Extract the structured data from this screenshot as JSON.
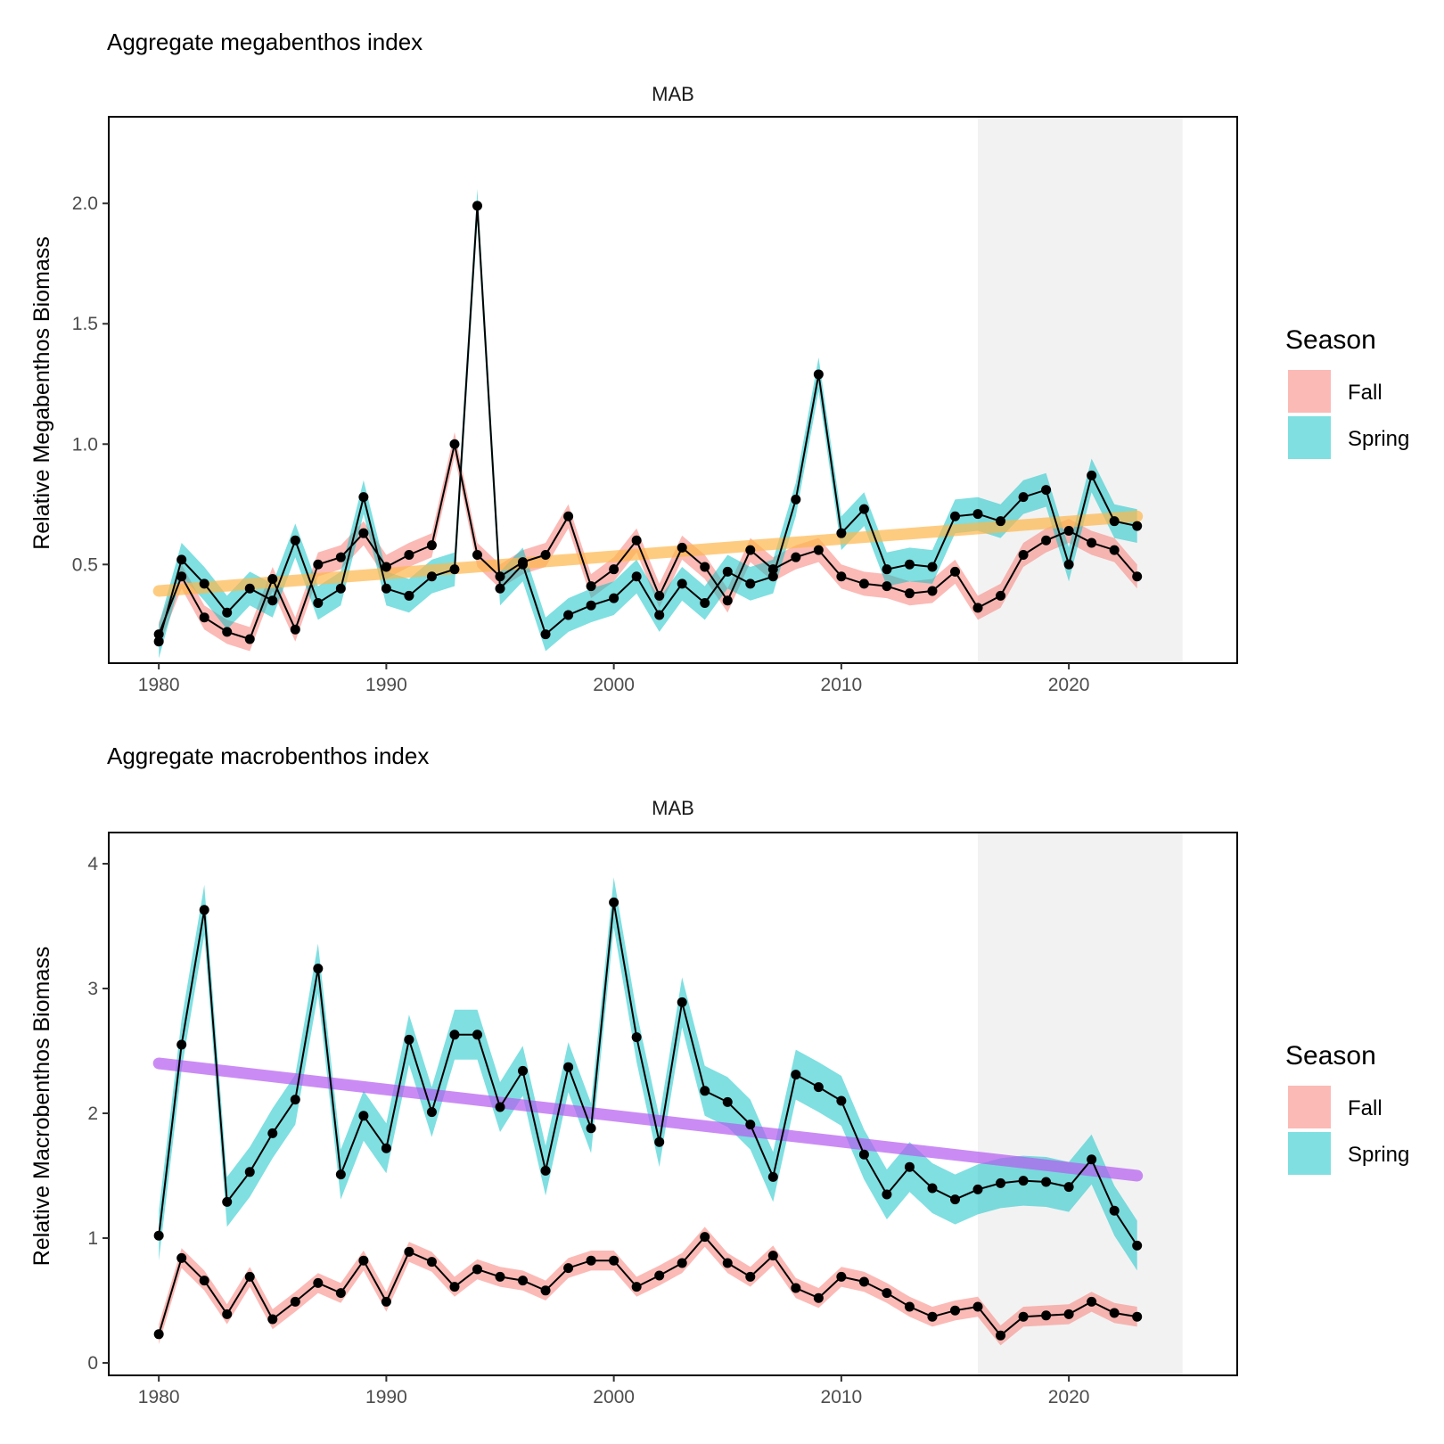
{
  "legend_title": "Season",
  "legend_items": [
    {
      "label": "Fall",
      "color": "#F8766D"
    },
    {
      "label": "Spring",
      "color": "#00BFC4"
    }
  ],
  "colors": {
    "fall_ribbon": "#F8766D",
    "spring_ribbon": "#00BFC4",
    "line": "#000000",
    "shade": "#F2F2F2",
    "trend_top": "#FDB64B",
    "trend_bottom": "#B45BF0"
  },
  "chart_data": [
    {
      "type": "line",
      "title": "Aggregate megabenthos index",
      "facet": "MAB",
      "ylabel": "Relative Megabenthos Biomass",
      "xlim": [
        1977.8,
        2027.4
      ],
      "ylim": [
        0.09,
        2.36
      ],
      "xticks": [
        1980,
        1990,
        2000,
        2010,
        2020
      ],
      "yticks": [
        0.5,
        1.0,
        1.5,
        2.0
      ],
      "ytick_labels": [
        "0.5",
        "1.0",
        "1.5",
        "2.0"
      ],
      "shade_range": [
        2016,
        2025
      ],
      "trend": {
        "x": [
          1980,
          2023
        ],
        "y": [
          0.39,
          0.7
        ]
      },
      "x": [
        1980,
        1981,
        1982,
        1983,
        1984,
        1985,
        1986,
        1987,
        1988,
        1989,
        1990,
        1991,
        1992,
        1993,
        1994,
        1995,
        1996,
        1997,
        1998,
        1999,
        2000,
        2001,
        2002,
        2003,
        2004,
        2005,
        2006,
        2007,
        2008,
        2009,
        2010,
        2011,
        2012,
        2013,
        2014,
        2015,
        2016,
        2017,
        2018,
        2019,
        2020,
        2021,
        2022,
        2023
      ],
      "series": [
        {
          "name": "Fall",
          "values": [
            0.21,
            0.45,
            0.28,
            0.22,
            0.19,
            0.44,
            0.23,
            0.5,
            0.53,
            0.63,
            0.49,
            0.54,
            0.58,
            1.0,
            0.54,
            0.45,
            0.51,
            0.54,
            0.7,
            0.41,
            0.48,
            0.6,
            0.37,
            0.57,
            0.49,
            0.35,
            0.56,
            0.48,
            0.53,
            0.56,
            0.45,
            0.42,
            0.41,
            0.38,
            0.39,
            0.47,
            0.32,
            0.37,
            0.54,
            0.6,
            0.64,
            0.59,
            0.56,
            0.45
          ],
          "band": 0.05
        },
        {
          "name": "Spring",
          "values": [
            0.18,
            0.52,
            0.42,
            0.3,
            0.4,
            0.35,
            0.6,
            0.34,
            0.4,
            0.78,
            0.4,
            0.37,
            0.45,
            0.48,
            1.99,
            0.4,
            0.5,
            0.21,
            0.29,
            0.33,
            0.36,
            0.45,
            0.29,
            0.42,
            0.34,
            0.47,
            0.42,
            0.45,
            0.77,
            1.29,
            0.63,
            0.73,
            0.48,
            0.5,
            0.49,
            0.7,
            0.71,
            0.68,
            0.78,
            0.81,
            0.5,
            0.87,
            0.68,
            0.66
          ],
          "band": 0.07
        }
      ]
    },
    {
      "type": "line",
      "title": "Aggregate macrobenthos index",
      "facet": "MAB",
      "ylabel": "Relative Macrobenthos Biomass",
      "xlim": [
        1977.8,
        2027.4
      ],
      "ylim": [
        -0.1,
        4.25
      ],
      "xticks": [
        1980,
        1990,
        2000,
        2010,
        2020
      ],
      "yticks": [
        0,
        1,
        2,
        3,
        4
      ],
      "ytick_labels": [
        "0",
        "1",
        "2",
        "3",
        "4"
      ],
      "shade_range": [
        2016,
        2025
      ],
      "trend": {
        "x": [
          1980,
          2023
        ],
        "y": [
          2.4,
          1.5
        ]
      },
      "x": [
        1980,
        1981,
        1982,
        1983,
        1984,
        1985,
        1986,
        1987,
        1988,
        1989,
        1990,
        1991,
        1992,
        1993,
        1994,
        1995,
        1996,
        1997,
        1998,
        1999,
        2000,
        2001,
        2002,
        2003,
        2004,
        2005,
        2006,
        2007,
        2008,
        2009,
        2010,
        2011,
        2012,
        2013,
        2014,
        2015,
        2016,
        2017,
        2018,
        2019,
        2020,
        2021,
        2022,
        2023
      ],
      "series": [
        {
          "name": "Fall",
          "values": [
            0.23,
            0.84,
            0.66,
            0.39,
            0.69,
            0.35,
            0.49,
            0.64,
            0.56,
            0.82,
            0.49,
            0.89,
            0.81,
            0.61,
            0.75,
            0.69,
            0.66,
            0.58,
            0.76,
            0.82,
            0.82,
            0.61,
            0.7,
            0.8,
            1.01,
            0.8,
            0.69,
            0.86,
            0.6,
            0.52,
            0.69,
            0.65,
            0.56,
            0.45,
            0.37,
            0.42,
            0.45,
            0.22,
            0.37,
            0.38,
            0.39,
            0.49,
            0.4,
            0.37
          ],
          "band": 0.08
        },
        {
          "name": "Spring",
          "values": [
            1.02,
            2.55,
            3.63,
            1.29,
            1.53,
            1.84,
            2.11,
            3.16,
            1.51,
            1.98,
            1.72,
            2.59,
            2.01,
            2.63,
            2.63,
            2.05,
            2.34,
            1.54,
            2.37,
            1.88,
            3.69,
            2.61,
            1.77,
            2.89,
            2.18,
            2.09,
            1.91,
            1.49,
            2.31,
            2.21,
            2.1,
            1.67,
            1.35,
            1.57,
            1.4,
            1.31,
            1.39,
            1.44,
            1.46,
            1.45,
            1.41,
            1.63,
            1.22,
            0.94
          ],
          "band": 0.2
        }
      ]
    }
  ]
}
